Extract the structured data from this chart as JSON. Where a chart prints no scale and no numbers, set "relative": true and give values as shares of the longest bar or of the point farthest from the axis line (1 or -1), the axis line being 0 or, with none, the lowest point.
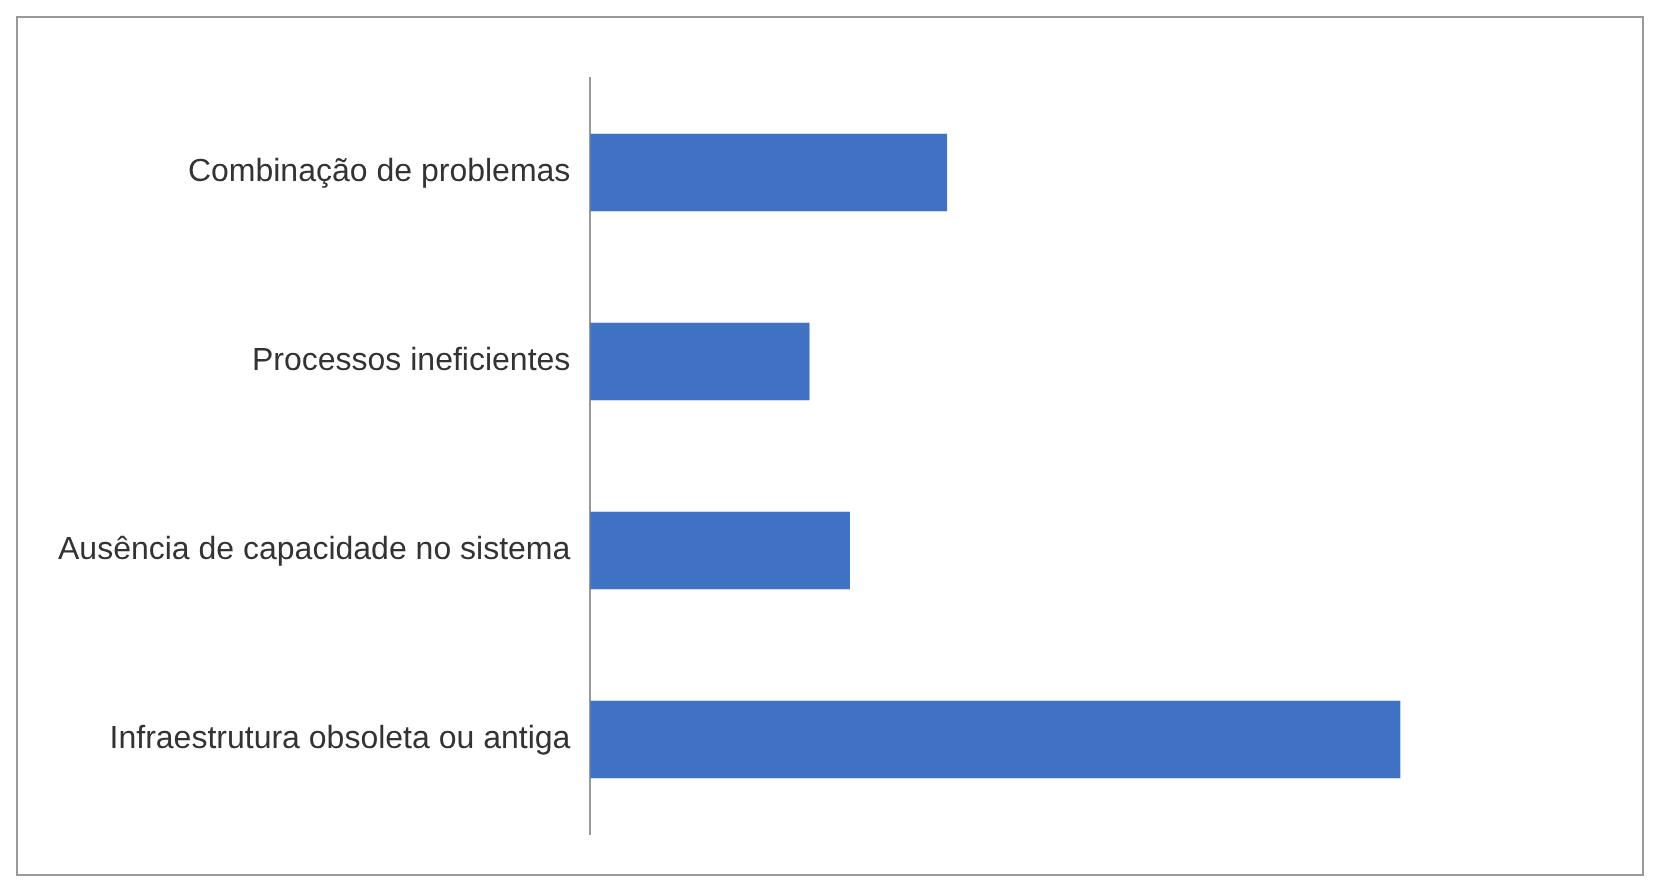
{
  "chart_data": {
    "type": "bar",
    "orientation": "horizontal",
    "relative": true,
    "grid": false,
    "legend": false,
    "categories": [
      "Combinação de problemas",
      "Processos ineficientes",
      "Ausência de capacidade no sistema",
      "Infraestrutura obsoleta ou antiga"
    ],
    "values": [
      0.44,
      0.27,
      0.32,
      1
    ],
    "color": "#3f72c2"
  }
}
